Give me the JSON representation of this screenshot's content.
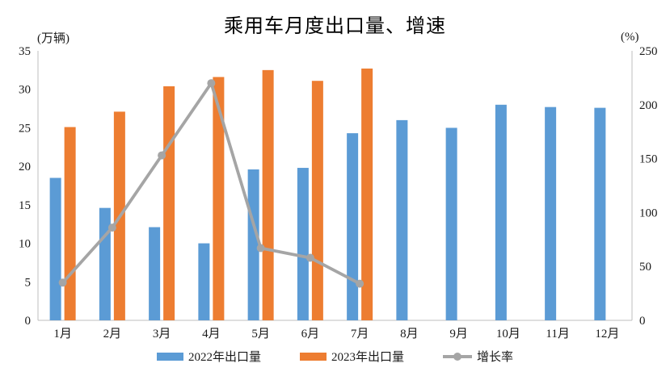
{
  "chart_data": {
    "type": "bar",
    "subtype": "grouped-bar-with-line",
    "title": "乘用车月度出口量、增速",
    "categories": [
      "1月",
      "2月",
      "3月",
      "4月",
      "5月",
      "6月",
      "7月",
      "8月",
      "9月",
      "10月",
      "11月",
      "12月"
    ],
    "series": [
      {
        "name": "2022年出口量",
        "type": "bar",
        "axis": "left",
        "color": "#5B9BD5",
        "values": [
          18.5,
          14.6,
          12.1,
          10.0,
          19.6,
          19.8,
          24.3,
          26.0,
          25.0,
          28.0,
          27.7,
          27.6
        ]
      },
      {
        "name": "2023年出口量",
        "type": "bar",
        "axis": "left",
        "color": "#ED7D31",
        "values": [
          25.1,
          27.1,
          30.4,
          31.6,
          32.5,
          31.1,
          32.7,
          null,
          null,
          null,
          null,
          null
        ]
      },
      {
        "name": "增长率",
        "type": "line",
        "axis": "right",
        "color": "#A5A5A5",
        "values": [
          35,
          86,
          153,
          220,
          67,
          58,
          34,
          null,
          null,
          null,
          null,
          null
        ]
      }
    ],
    "left_axis": {
      "label": "(万辆)",
      "min": 0,
      "max": 35,
      "ticks": [
        0,
        5,
        10,
        15,
        20,
        25,
        30,
        35
      ]
    },
    "right_axis": {
      "label": "(%)",
      "min": 0,
      "max": 250,
      "ticks": [
        0,
        50,
        100,
        150,
        200,
        250
      ]
    },
    "grid": false,
    "legend_position": "bottom",
    "axis_color": "#BFBFBF",
    "background": "#FFFFFF"
  }
}
